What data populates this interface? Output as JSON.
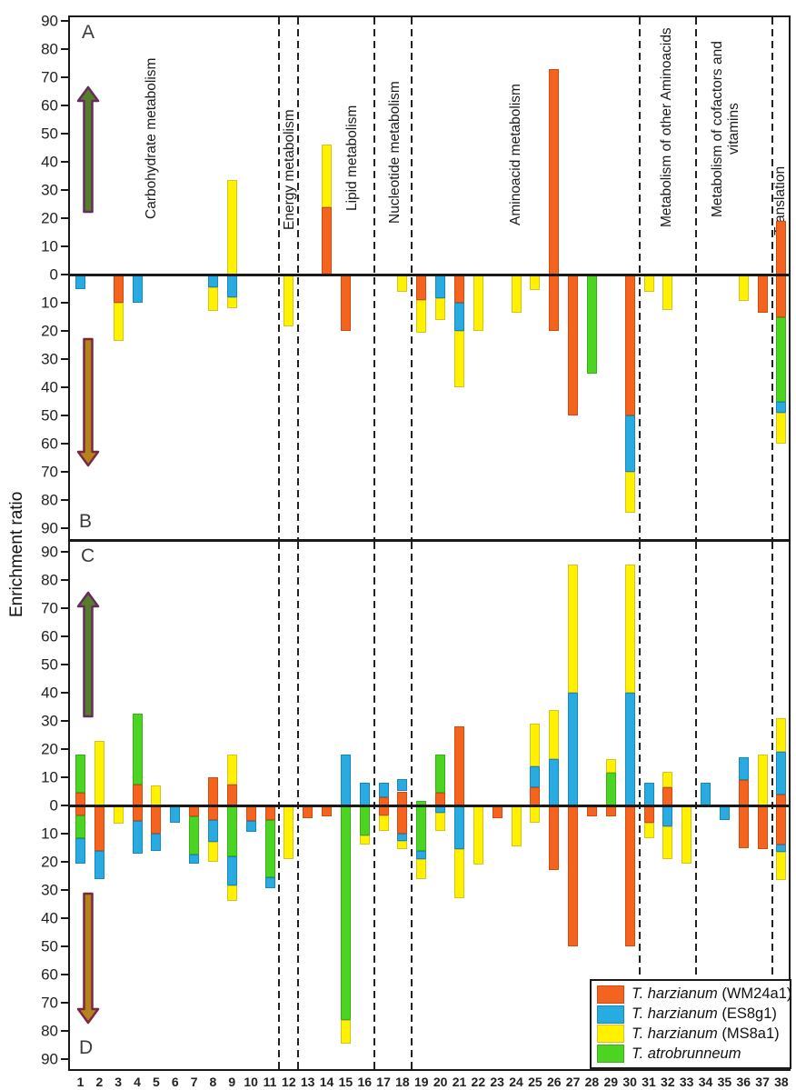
{
  "figure": {
    "ylabel": "Enrichment ratio",
    "panel_labels": [
      "A",
      "B",
      "C",
      "D"
    ]
  },
  "legend": {
    "items": [
      {
        "species": "T. harzianum",
        "strain": " (WM24a1)",
        "key": "O"
      },
      {
        "species": "T. harzianum",
        "strain": " (ES8g1)",
        "key": "B"
      },
      {
        "species": "T. harzianum",
        "strain": " (MS8a1)",
        "key": "Y"
      },
      {
        "species": "T. atrobrunneum",
        "strain": "",
        "key": "G"
      }
    ]
  },
  "colors": {
    "O": {
      "fill": "#F4641E",
      "border": "#CE4B12"
    },
    "B": {
      "fill": "#29ABE2",
      "border": "#1689BC"
    },
    "Y": {
      "fill": "#FFF100",
      "border": "#D2C222"
    },
    "G": {
      "fill": "#4CD422",
      "border": "#3AAF18"
    }
  },
  "arrows": {
    "up_fill": "#567D2E",
    "up_stroke": "#652D5B",
    "down_fill": "#B5831D",
    "down_stroke": "#7C2742"
  },
  "chart_data": {
    "type": "bar",
    "stacked": true,
    "diverging": true,
    "title": "",
    "xlabel": "",
    "ylabel": "Enrichment ratio",
    "ylim": [
      -90,
      90
    ],
    "y_tick_step": 10,
    "grid": false,
    "legend_position": "bottom-right",
    "x_ticks": [
      1,
      2,
      3,
      4,
      5,
      6,
      7,
      8,
      9,
      10,
      11,
      12,
      13,
      14,
      15,
      16,
      17,
      18,
      19,
      20,
      21,
      22,
      23,
      24,
      25,
      26,
      27,
      28,
      29,
      30,
      31,
      32,
      33,
      34,
      35,
      36,
      37,
      38
    ],
    "series_legend": [
      {
        "key": "O",
        "label": "T. harzianum (WM24a1)"
      },
      {
        "key": "B",
        "label": "T. harzianum (ES8g1)"
      },
      {
        "key": "Y",
        "label": "T. harzianum (MS8a1)"
      },
      {
        "key": "G",
        "label": "T. atrobrunneum"
      }
    ],
    "category_groups": [
      {
        "label": "Carbohydrate metabolism",
        "from": 1,
        "to": 11
      },
      {
        "label": "Energy metabolism",
        "from": 12,
        "to": 12
      },
      {
        "label": "Lipid metabolism",
        "from": 13,
        "to": 16
      },
      {
        "label": "Nucleotide metabolism",
        "from": 17,
        "to": 18
      },
      {
        "label": "Aminoacid metabolism",
        "from": 19,
        "to": 30
      },
      {
        "label": "Metabolism of other Aminoacids",
        "from": 31,
        "to": 33
      },
      {
        "label": "Metabolism of cofactors and vitamins",
        "from": 34,
        "to": 37
      },
      {
        "label": "Translation",
        "from": 38,
        "to": 38
      }
    ],
    "panels": {
      "A": {
        "direction": "up",
        "bars": {
          "9": [
            [
              "Y",
              33.5
            ]
          ],
          "14": [
            [
              "O",
              24
            ],
            [
              "Y",
              22
            ]
          ],
          "26": [
            [
              "O",
              73
            ]
          ],
          "38": [
            [
              "O",
              19
            ]
          ]
        }
      },
      "B": {
        "direction": "down",
        "bars": {
          "1": [
            [
              "B",
              5
            ]
          ],
          "3": [
            [
              "O",
              10
            ],
            [
              "Y",
              13.5
            ]
          ],
          "4": [
            [
              "B",
              10
            ]
          ],
          "8": [
            [
              "B",
              4.5
            ],
            [
              "Y",
              8.5
            ]
          ],
          "9": [
            [
              "B",
              8
            ],
            [
              "Y",
              4
            ]
          ],
          "12": [
            [
              "Y",
              18.5
            ]
          ],
          "15": [
            [
              "O",
              20
            ]
          ],
          "18": [
            [
              "Y",
              6
            ]
          ],
          "19": [
            [
              "O",
              9
            ],
            [
              "Y",
              11.5
            ]
          ],
          "20": [
            [
              "B",
              8.5
            ],
            [
              "Y",
              7.5
            ]
          ],
          "21": [
            [
              "O",
              10
            ],
            [
              "B",
              10
            ],
            [
              "Y",
              20
            ]
          ],
          "22": [
            [
              "Y",
              20
            ]
          ],
          "24": [
            [
              "Y",
              13.5
            ]
          ],
          "25": [
            [
              "Y",
              5.5
            ]
          ],
          "26": [
            [
              "O",
              20
            ]
          ],
          "27": [
            [
              "O",
              50
            ]
          ],
          "28": [
            [
              "G",
              35
            ]
          ],
          "30": [
            [
              "O",
              50
            ],
            [
              "B",
              20
            ],
            [
              "Y",
              14.5
            ]
          ],
          "31": [
            [
              "Y",
              6
            ]
          ],
          "32": [
            [
              "Y",
              12.5
            ]
          ],
          "36": [
            [
              "Y",
              9.5
            ]
          ],
          "37": [
            [
              "O",
              13.5
            ]
          ],
          "38": [
            [
              "O",
              15
            ],
            [
              "G",
              30
            ],
            [
              "B",
              4
            ],
            [
              "Y",
              11
            ]
          ]
        }
      },
      "C": {
        "direction": "up",
        "bars": {
          "1": [
            [
              "O",
              4.5
            ],
            [
              "G",
              13.5
            ]
          ],
          "2": [
            [
              "Y",
              23
            ]
          ],
          "4": [
            [
              "O",
              7.5
            ],
            [
              "G",
              25
            ]
          ],
          "5": [
            [
              "Y",
              7
            ]
          ],
          "8": [
            [
              "O",
              10
            ]
          ],
          "9": [
            [
              "O",
              7.5
            ],
            [
              "Y",
              10.5
            ]
          ],
          "15": [
            [
              "B",
              18
            ]
          ],
          "16": [
            [
              "B",
              8
            ]
          ],
          "17": [
            [
              "O",
              3
            ],
            [
              "B",
              5
            ]
          ],
          "18": [
            [
              "O",
              5
            ],
            [
              "B",
              4.5
            ]
          ],
          "19": [
            [
              "G",
              1.5
            ]
          ],
          "20": [
            [
              "O",
              4.5
            ],
            [
              "G",
              13.5
            ]
          ],
          "21": [
            [
              "O",
              28
            ]
          ],
          "25": [
            [
              "O",
              6.5
            ],
            [
              "B",
              7.5
            ],
            [
              "Y",
              15
            ]
          ],
          "26": [
            [
              "B",
              16.5
            ],
            [
              "Y",
              17.5
            ]
          ],
          "27": [
            [
              "B",
              40
            ],
            [
              "Y",
              45.5
            ]
          ],
          "29": [
            [
              "G",
              11.5
            ],
            [
              "Y",
              5
            ]
          ],
          "30": [
            [
              "B",
              40
            ],
            [
              "Y",
              45.5
            ]
          ],
          "31": [
            [
              "B",
              8
            ]
          ],
          "32": [
            [
              "O",
              6.5
            ],
            [
              "Y",
              5.5
            ]
          ],
          "34": [
            [
              "B",
              8
            ]
          ],
          "36": [
            [
              "O",
              9
            ],
            [
              "B",
              8
            ]
          ],
          "37": [
            [
              "Y",
              18
            ]
          ],
          "38": [
            [
              "O",
              4
            ],
            [
              "B",
              15
            ],
            [
              "Y",
              12
            ]
          ]
        }
      },
      "D": {
        "direction": "down",
        "bars": {
          "1": [
            [
              "O",
              3.5
            ],
            [
              "G",
              8
            ],
            [
              "B",
              9
            ]
          ],
          "2": [
            [
              "O",
              16
            ],
            [
              "B",
              10
            ]
          ],
          "3": [
            [
              "Y",
              6.5
            ]
          ],
          "4": [
            [
              "O",
              5.5
            ],
            [
              "B",
              11.5
            ]
          ],
          "5": [
            [
              "O",
              10
            ],
            [
              "B",
              6
            ]
          ],
          "6": [
            [
              "B",
              6
            ]
          ],
          "7": [
            [
              "O",
              4
            ],
            [
              "G",
              13.5
            ],
            [
              "B",
              3
            ]
          ],
          "8": [
            [
              "O",
              5
            ],
            [
              "B",
              8
            ],
            [
              "Y",
              7
            ]
          ],
          "9": [
            [
              "G",
              18
            ],
            [
              "B",
              10.5
            ],
            [
              "Y",
              5.5
            ]
          ],
          "10": [
            [
              "O",
              5.5
            ],
            [
              "B",
              4
            ]
          ],
          "11": [
            [
              "O",
              5
            ],
            [
              "G",
              20.5
            ],
            [
              "B",
              4
            ]
          ],
          "12": [
            [
              "Y",
              19
            ]
          ],
          "13": [
            [
              "O",
              4.5
            ]
          ],
          "14": [
            [
              "O",
              4
            ]
          ],
          "15": [
            [
              "G",
              76
            ],
            [
              "Y",
              8.5
            ]
          ],
          "16": [
            [
              "G",
              10.5
            ],
            [
              "Y",
              3.5
            ]
          ],
          "17": [
            [
              "O",
              3.5
            ],
            [
              "Y",
              5.5
            ]
          ],
          "18": [
            [
              "O",
              10
            ],
            [
              "B",
              2.5
            ],
            [
              "Y",
              3
            ]
          ],
          "19": [
            [
              "G",
              16
            ],
            [
              "B",
              3
            ],
            [
              "Y",
              7
            ]
          ],
          "20": [
            [
              "B",
              2.5
            ],
            [
              "Y",
              6.5
            ]
          ],
          "21": [
            [
              "B",
              15.5
            ],
            [
              "Y",
              17.5
            ]
          ],
          "22": [
            [
              "Y",
              21
            ]
          ],
          "23": [
            [
              "O",
              4.5
            ]
          ],
          "24": [
            [
              "Y",
              14.5
            ]
          ],
          "25": [
            [
              "Y",
              6
            ]
          ],
          "26": [
            [
              "O",
              23
            ]
          ],
          "27": [
            [
              "O",
              50
            ]
          ],
          "28": [
            [
              "O",
              4
            ]
          ],
          "29": [
            [
              "O",
              4
            ]
          ],
          "30": [
            [
              "O",
              50
            ]
          ],
          "31": [
            [
              "O",
              6
            ],
            [
              "Y",
              5.5
            ]
          ],
          "32": [
            [
              "B",
              7.5
            ],
            [
              "Y",
              11.5
            ]
          ],
          "33": [
            [
              "Y",
              20.5
            ]
          ],
          "35": [
            [
              "B",
              5
            ]
          ],
          "36": [
            [
              "O",
              15
            ]
          ],
          "37": [
            [
              "O",
              15.5
            ]
          ],
          "38": [
            [
              "O",
              14
            ],
            [
              "B",
              2.5
            ],
            [
              "Y",
              10
            ]
          ]
        }
      }
    }
  }
}
